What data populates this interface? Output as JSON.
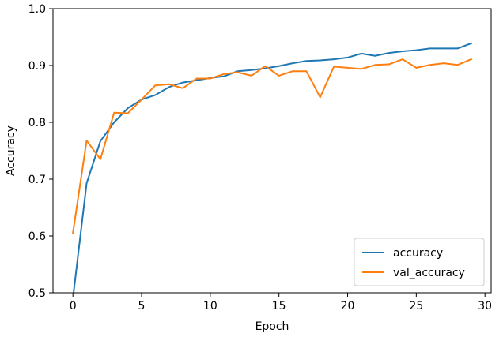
{
  "chart_data": {
    "type": "line",
    "title": "",
    "xlabel": "Epoch",
    "ylabel": "Accuracy",
    "xlim": [
      -1.45,
      30.45
    ],
    "ylim": [
      0.5,
      1.0
    ],
    "xticks": [
      0,
      5,
      10,
      15,
      20,
      25,
      30
    ],
    "yticks": [
      0.5,
      0.6,
      0.7,
      0.8,
      0.9,
      1.0
    ],
    "xtick_labels": [
      "0",
      "5",
      "10",
      "15",
      "20",
      "25",
      "30"
    ],
    "ytick_labels": [
      "0.5",
      "0.6",
      "0.7",
      "0.8",
      "0.9",
      "1.0"
    ],
    "grid": false,
    "legend_position": "lower-right",
    "x": [
      0,
      1,
      2,
      3,
      4,
      5,
      6,
      7,
      8,
      9,
      10,
      11,
      12,
      13,
      14,
      15,
      16,
      17,
      18,
      19,
      20,
      21,
      22,
      23,
      24,
      25,
      26,
      27,
      28,
      29
    ],
    "series": [
      {
        "name": "accuracy",
        "color": "#1f77b4",
        "values": [
          0.49,
          0.693,
          0.767,
          0.8,
          0.825,
          0.84,
          0.848,
          0.862,
          0.87,
          0.874,
          0.878,
          0.881,
          0.89,
          0.892,
          0.895,
          0.899,
          0.904,
          0.908,
          0.909,
          0.911,
          0.914,
          0.921,
          0.917,
          0.922,
          0.925,
          0.927,
          0.93,
          0.93,
          0.93,
          0.939
        ]
      },
      {
        "name": "val_accuracy",
        "color": "#ff7f0e",
        "values": [
          0.605,
          0.768,
          0.735,
          0.817,
          0.816,
          0.84,
          0.865,
          0.867,
          0.86,
          0.877,
          0.877,
          0.885,
          0.888,
          0.882,
          0.899,
          0.882,
          0.89,
          0.89,
          0.844,
          0.898,
          0.896,
          0.894,
          0.901,
          0.902,
          0.911,
          0.896,
          0.901,
          0.904,
          0.901,
          0.911
        ]
      }
    ]
  }
}
